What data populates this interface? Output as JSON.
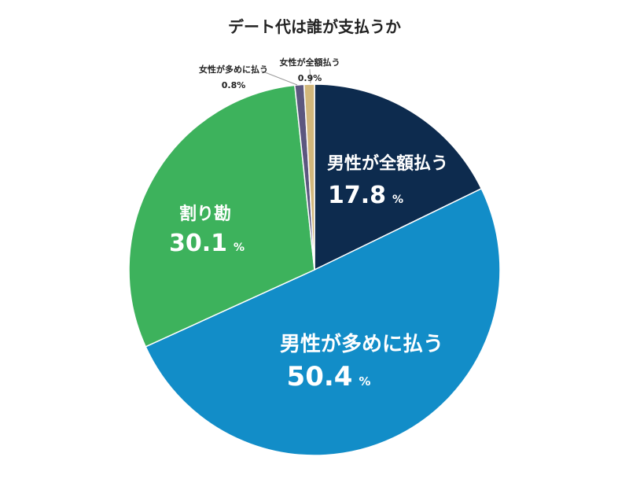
{
  "chart_data": {
    "type": "pie",
    "title": "デート代は誰が支払うか",
    "unit": "%",
    "slices": [
      {
        "label": "男性が全額払う",
        "value": 17.8,
        "color": "#0d2b4e"
      },
      {
        "label": "男性が多めに払う",
        "value": 50.4,
        "color": "#128dc8"
      },
      {
        "label": "割り勘",
        "value": 30.1,
        "color": "#3db25c"
      },
      {
        "label": "女性が多めに払う",
        "value": 0.8,
        "color": "#5c577f"
      },
      {
        "label": "女性が全額払う",
        "value": 0.9,
        "color": "#d2b77b"
      }
    ]
  }
}
